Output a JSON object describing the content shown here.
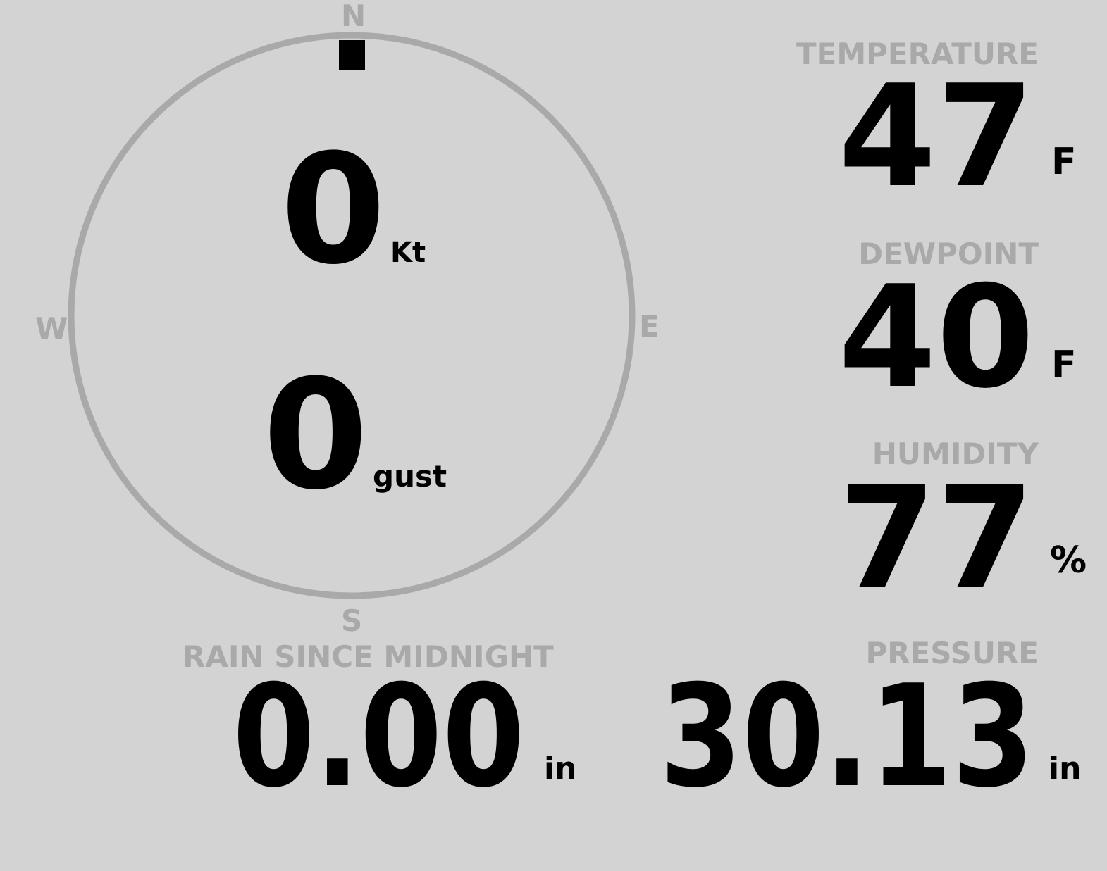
{
  "compass": {
    "north": "N",
    "south": "S",
    "east": "E",
    "west": "W",
    "direction_deg": 0
  },
  "wind": {
    "speed": "0",
    "speed_unit": "Kt",
    "gust": "0",
    "gust_unit": "gust"
  },
  "temperature": {
    "label": "TEMPERATURE",
    "value": "47",
    "unit": "F"
  },
  "dewpoint": {
    "label": "DEWPOINT",
    "value": "40",
    "unit": "F"
  },
  "humidity": {
    "label": "HUMIDITY",
    "value": "77",
    "unit": "%"
  },
  "rain": {
    "label": "RAIN SINCE MIDNIGHT",
    "value": "0.00",
    "unit": "in"
  },
  "pressure": {
    "label": "PRESSURE",
    "value": "30.13",
    "unit": "in"
  },
  "colors": {
    "background": "#d3d3d3",
    "label": "#a9a9a9",
    "value": "#000000"
  }
}
